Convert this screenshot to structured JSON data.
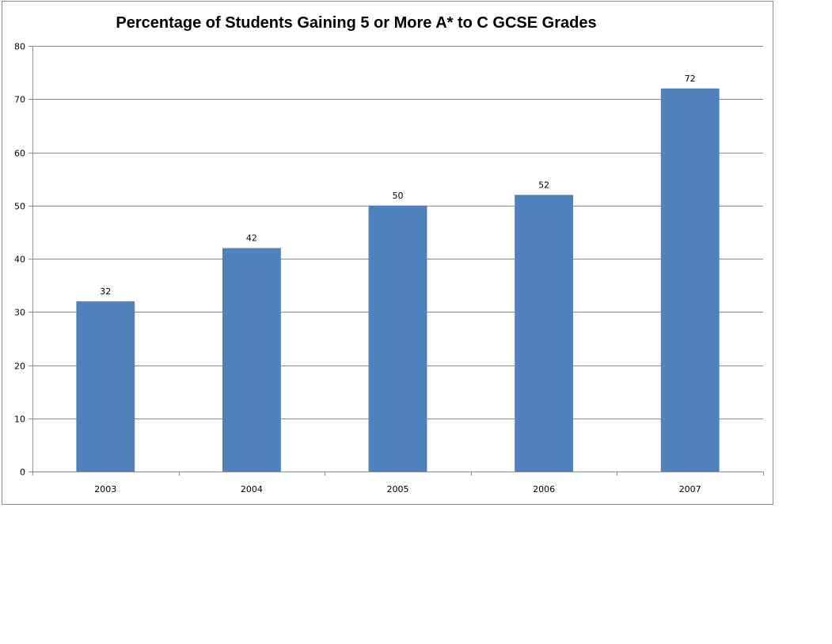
{
  "colors": {
    "bar": "#4F81BD",
    "gridline": "#8C8C8C",
    "axis": "#8C8C8C"
  },
  "chart_data": {
    "type": "bar",
    "title": "Percentage of Students Gaining 5 or More A* to C GCSE Grades",
    "xlabel": "",
    "ylabel": "",
    "categories": [
      "2003",
      "2004",
      "2005",
      "2006",
      "2007"
    ],
    "values": [
      32,
      42,
      50,
      52,
      72
    ],
    "ylim": [
      0,
      80
    ],
    "yticks": [
      0,
      10,
      20,
      30,
      40,
      50,
      60,
      70,
      80
    ],
    "grid": true,
    "legend": "none",
    "data_labels": true
  }
}
